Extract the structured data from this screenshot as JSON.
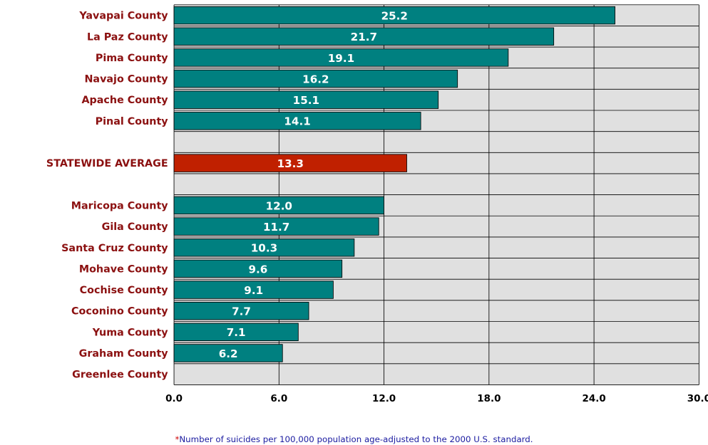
{
  "chart_data": {
    "type": "bar",
    "orientation": "horizontal",
    "categories": [
      "Yavapai County",
      "La Paz County",
      "Pima County",
      "Navajo County",
      "Apache County",
      "Pinal County",
      "",
      "STATEWIDE AVERAGE",
      "",
      "Maricopa County",
      "Gila County",
      "Santa Cruz County",
      "Mohave County",
      "Cochise County",
      "Coconino County",
      "Yuma County",
      "Graham County",
      "Greenlee County"
    ],
    "values": [
      25.2,
      21.7,
      19.1,
      16.2,
      15.1,
      14.1,
      null,
      13.3,
      null,
      12.0,
      11.7,
      10.3,
      9.6,
      9.1,
      7.7,
      7.1,
      6.2,
      null
    ],
    "value_labels": [
      "25.2",
      "21.7",
      "19.1",
      "16.2",
      "15.1",
      "14.1",
      "",
      "13.3",
      "",
      "12.0",
      "11.7",
      "10.3",
      "9.6",
      "9.1",
      "7.7",
      "7.1",
      "6.2",
      ""
    ],
    "highlight_category": "STATEWIDE AVERAGE",
    "xlim": [
      0,
      30
    ],
    "x_ticks": [
      "0.0",
      "6.0",
      "12.0",
      "18.0",
      "24.0",
      "30.0"
    ],
    "grid": true,
    "title": "",
    "xlabel": "",
    "ylabel": "",
    "colors": {
      "bar": "#008080",
      "highlight_bar": "#c02000",
      "plot_background": "#e0e0e0",
      "category_label": "#8b1010",
      "bar_label": "#ffffff"
    }
  },
  "footnote": {
    "marker": "*",
    "text": "Number of suicides per 100,000 population age-adjusted to the 2000 U.S. standard."
  }
}
